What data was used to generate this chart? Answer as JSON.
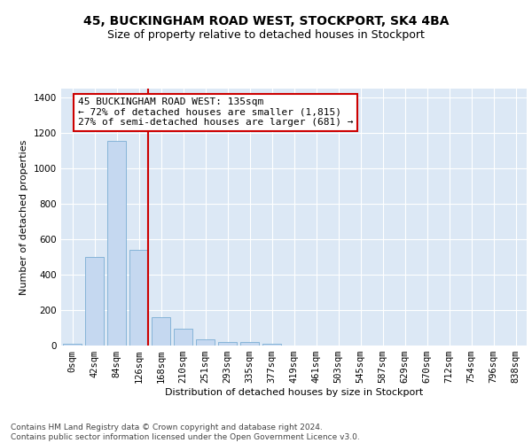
{
  "title_line1": "45, BUCKINGHAM ROAD WEST, STOCKPORT, SK4 4BA",
  "title_line2": "Size of property relative to detached houses in Stockport",
  "xlabel": "Distribution of detached houses by size in Stockport",
  "ylabel": "Number of detached properties",
  "categories": [
    "0sqm",
    "42sqm",
    "84sqm",
    "126sqm",
    "168sqm",
    "210sqm",
    "251sqm",
    "293sqm",
    "335sqm",
    "377sqm",
    "419sqm",
    "461sqm",
    "503sqm",
    "545sqm",
    "587sqm",
    "629sqm",
    "670sqm",
    "712sqm",
    "754sqm",
    "796sqm",
    "838sqm"
  ],
  "values": [
    10,
    500,
    1155,
    540,
    160,
    95,
    35,
    22,
    18,
    12,
    0,
    0,
    0,
    0,
    0,
    0,
    0,
    0,
    0,
    0,
    0
  ],
  "bar_color": "#c5d8f0",
  "bar_edge_color": "#7aadd4",
  "highlight_line_color": "#cc0000",
  "annotation_text": "45 BUCKINGHAM ROAD WEST: 135sqm\n← 72% of detached houses are smaller (1,815)\n27% of semi-detached houses are larger (681) →",
  "annotation_box_color": "#ffffff",
  "annotation_box_edge_color": "#cc0000",
  "ylim": [
    0,
    1450
  ],
  "yticks": [
    0,
    200,
    400,
    600,
    800,
    1000,
    1200,
    1400
  ],
  "bg_color": "#dce8f5",
  "footer_text": "Contains HM Land Registry data © Crown copyright and database right 2024.\nContains public sector information licensed under the Open Government Licence v3.0.",
  "title_fontsize": 10,
  "subtitle_fontsize": 9,
  "annotation_fontsize": 8,
  "axis_label_fontsize": 8,
  "tick_fontsize": 7.5,
  "footer_fontsize": 6.5
}
